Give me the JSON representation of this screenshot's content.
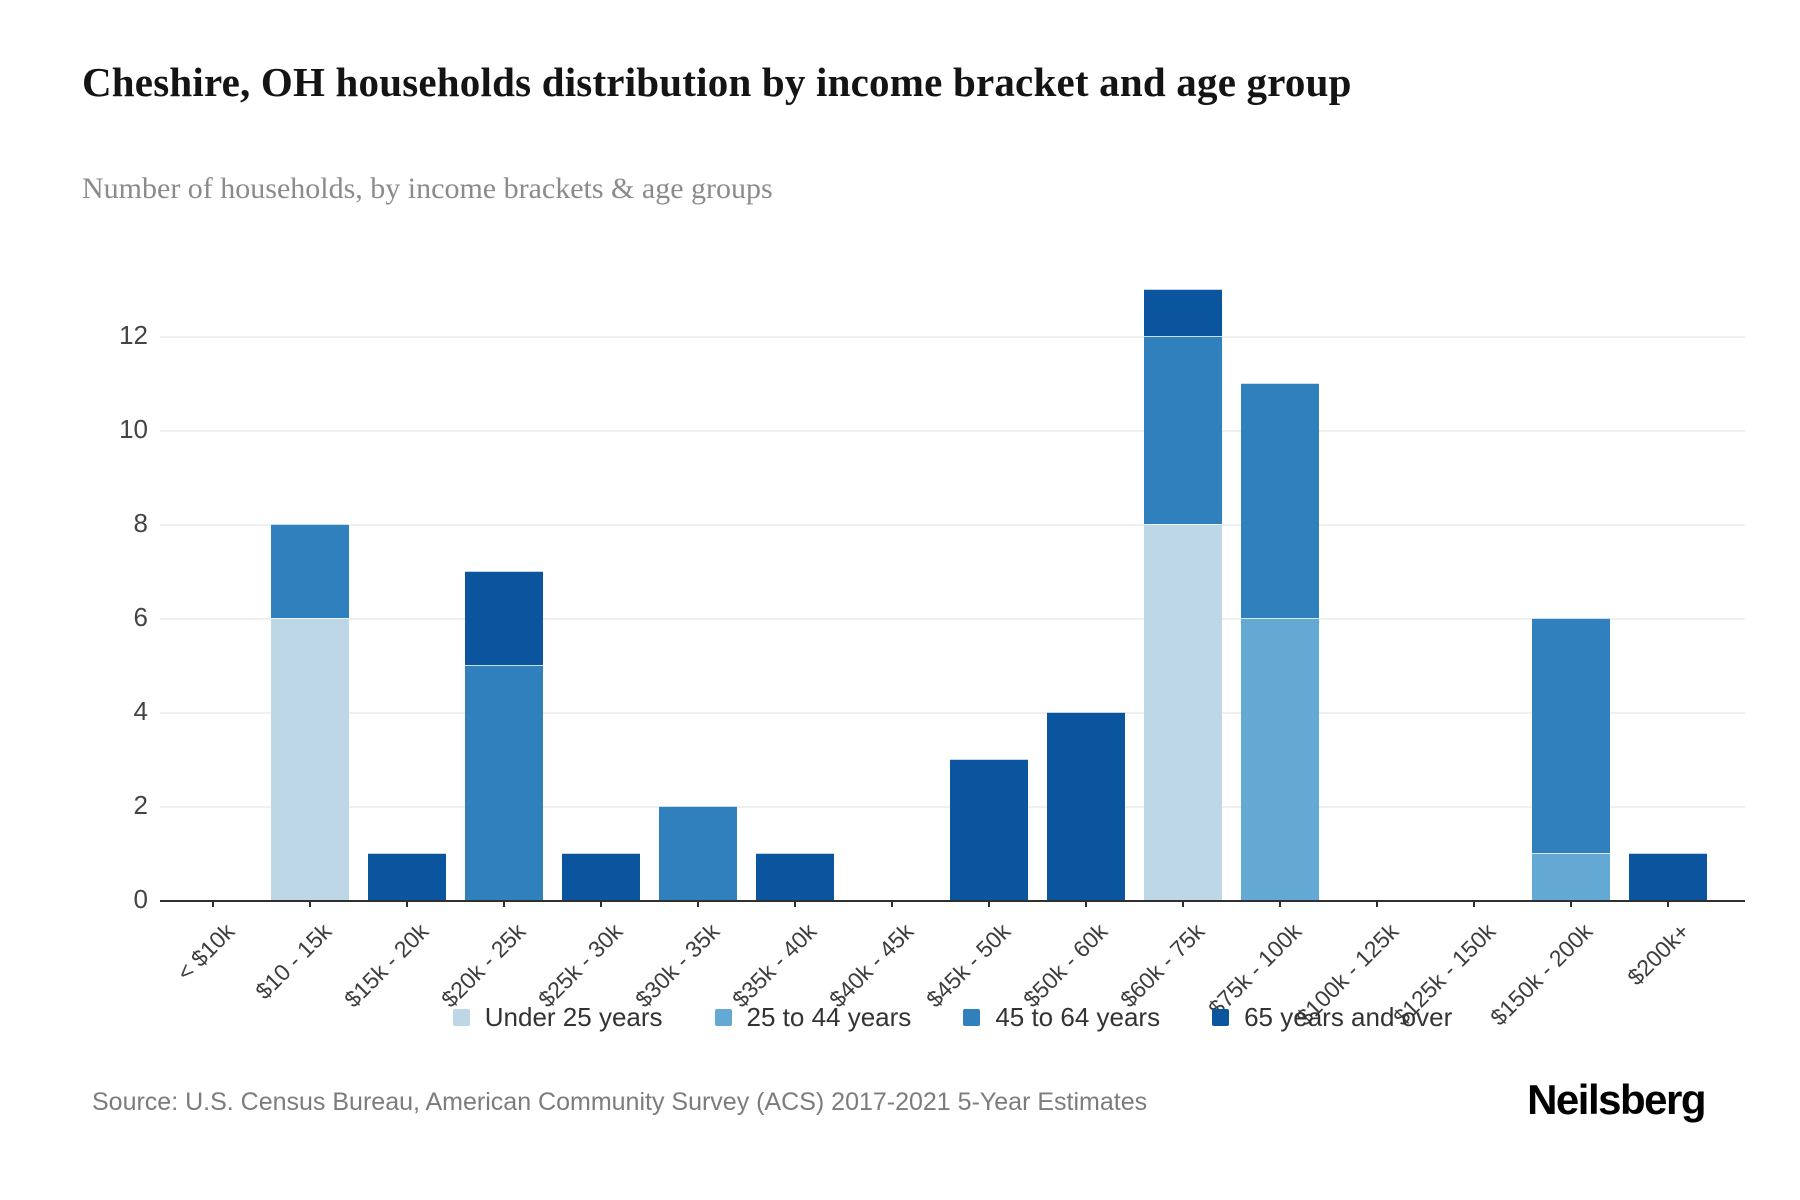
{
  "header": {
    "title": "Cheshire, OH households distribution by income bracket and age group",
    "subtitle": "Number of households, by income brackets & age groups"
  },
  "footer": {
    "source": "Source: U.S. Census Bureau, American Community Survey (ACS) 2017-2021 5-Year Estimates",
    "brand": "Neilsberg"
  },
  "colors": {
    "under_25": "#bdd7e7",
    "age_25_44": "#64a8d4",
    "age_45_64": "#2f80bd",
    "age_65_over": "#0b559f",
    "gridline": "#efefef",
    "axis": "#2f2f2f"
  },
  "chart_data": {
    "type": "bar",
    "stacked": true,
    "title": "Cheshire, OH households distribution by income bracket and age group",
    "subtitle": "Number of households, by income brackets & age groups",
    "xlabel": "",
    "ylabel": "",
    "ylim": [
      0,
      13
    ],
    "yticks": [
      0,
      2,
      4,
      6,
      8,
      10,
      12
    ],
    "grid": true,
    "legend_position": "bottom",
    "categories": [
      "< $10k",
      "$10 - 15k",
      "$15k - 20k",
      "$20k - 25k",
      "$25k - 30k",
      "$30k - 35k",
      "$35k - 40k",
      "$40k - 45k",
      "$45k - 50k",
      "$50k - 60k",
      "$60k - 75k",
      "$75k - 100k",
      "$100k - 125k",
      "$125k - 150k",
      "$150k - 200k",
      "$200k+"
    ],
    "series": [
      {
        "name": "Under 25 years",
        "color": "#bdd7e7",
        "values": [
          0,
          6,
          0,
          0,
          0,
          0,
          0,
          0,
          0,
          0,
          8,
          0,
          0,
          0,
          0,
          0
        ]
      },
      {
        "name": "25 to 44 years",
        "color": "#64a8d4",
        "values": [
          0,
          0,
          0,
          0,
          0,
          0,
          0,
          0,
          0,
          0,
          0,
          6,
          0,
          0,
          1,
          0
        ]
      },
      {
        "name": "45 to 64 years",
        "color": "#2f80bd",
        "values": [
          0,
          2,
          0,
          5,
          0,
          2,
          0,
          0,
          0,
          0,
          4,
          5,
          0,
          0,
          5,
          0
        ]
      },
      {
        "name": "65 years and over",
        "color": "#0b559f",
        "values": [
          0,
          0,
          1,
          2,
          1,
          0,
          1,
          0,
          3,
          4,
          1,
          0,
          0,
          0,
          0,
          1
        ]
      }
    ],
    "totals": [
      0,
      8,
      1,
      7,
      1,
      2,
      1,
      0,
      3,
      4,
      13,
      11,
      0,
      0,
      6,
      1
    ]
  }
}
